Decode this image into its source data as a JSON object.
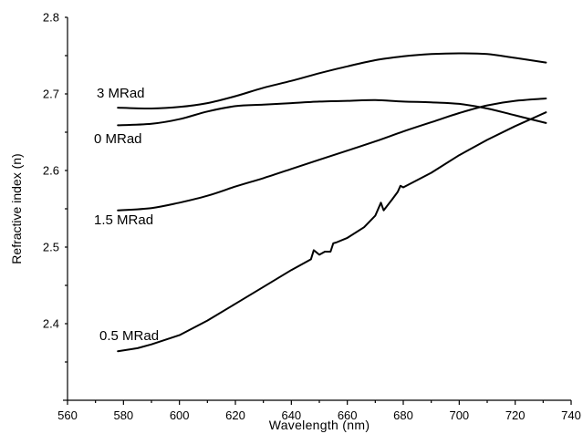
{
  "chart_data": {
    "type": "line",
    "title": "",
    "xlabel": "Wavelength (nm)",
    "ylabel": "Refractive index (n)",
    "xlim": [
      560,
      740
    ],
    "ylim": [
      2.3,
      2.8
    ],
    "x_ticks": [
      "560",
      "580",
      "600",
      "620",
      "640",
      "660",
      "680",
      "700",
      "720",
      "740"
    ],
    "y_ticks": [
      "2.4",
      "2.5",
      "2.6",
      "2.7",
      "2.8"
    ],
    "grid": false,
    "series": [
      {
        "name": "3 MRad",
        "x": [
          578,
          590,
          600,
          610,
          620,
          630,
          640,
          650,
          660,
          670,
          680,
          690,
          700,
          710,
          720,
          731
        ],
        "values": [
          2.682,
          2.681,
          2.683,
          2.688,
          2.697,
          2.708,
          2.717,
          2.727,
          2.736,
          2.744,
          2.749,
          2.752,
          2.753,
          2.752,
          2.747,
          2.741
        ]
      },
      {
        "name": "0 MRad",
        "x": [
          578,
          590,
          600,
          610,
          620,
          630,
          640,
          650,
          660,
          670,
          680,
          690,
          700,
          710,
          720,
          731
        ],
        "values": [
          2.659,
          2.661,
          2.667,
          2.677,
          2.684,
          2.686,
          2.688,
          2.69,
          2.691,
          2.692,
          2.69,
          2.689,
          2.687,
          2.681,
          2.672,
          2.662
        ]
      },
      {
        "name": "1.5 MRad",
        "x": [
          578,
          590,
          600,
          610,
          620,
          630,
          640,
          650,
          660,
          670,
          680,
          690,
          700,
          710,
          720,
          731
        ],
        "values": [
          2.548,
          2.551,
          2.558,
          2.567,
          2.579,
          2.59,
          2.602,
          2.614,
          2.626,
          2.638,
          2.651,
          2.663,
          2.675,
          2.685,
          2.691,
          2.694
        ]
      },
      {
        "name": "0.5 MRad",
        "x": [
          578,
          585,
          590,
          600,
          610,
          620,
          630,
          640,
          646,
          647,
          648,
          650,
          652,
          654,
          655,
          656,
          660,
          666,
          670,
          672,
          673,
          676,
          678,
          679,
          680,
          690,
          700,
          710,
          720,
          731
        ],
        "values": [
          2.364,
          2.368,
          2.373,
          2.385,
          2.404,
          2.426,
          2.448,
          2.47,
          2.482,
          2.484,
          2.496,
          2.49,
          2.494,
          2.494,
          2.505,
          2.506,
          2.512,
          2.526,
          2.541,
          2.558,
          2.548,
          2.562,
          2.572,
          2.58,
          2.578,
          2.597,
          2.62,
          2.64,
          2.658,
          2.676
        ]
      }
    ]
  }
}
